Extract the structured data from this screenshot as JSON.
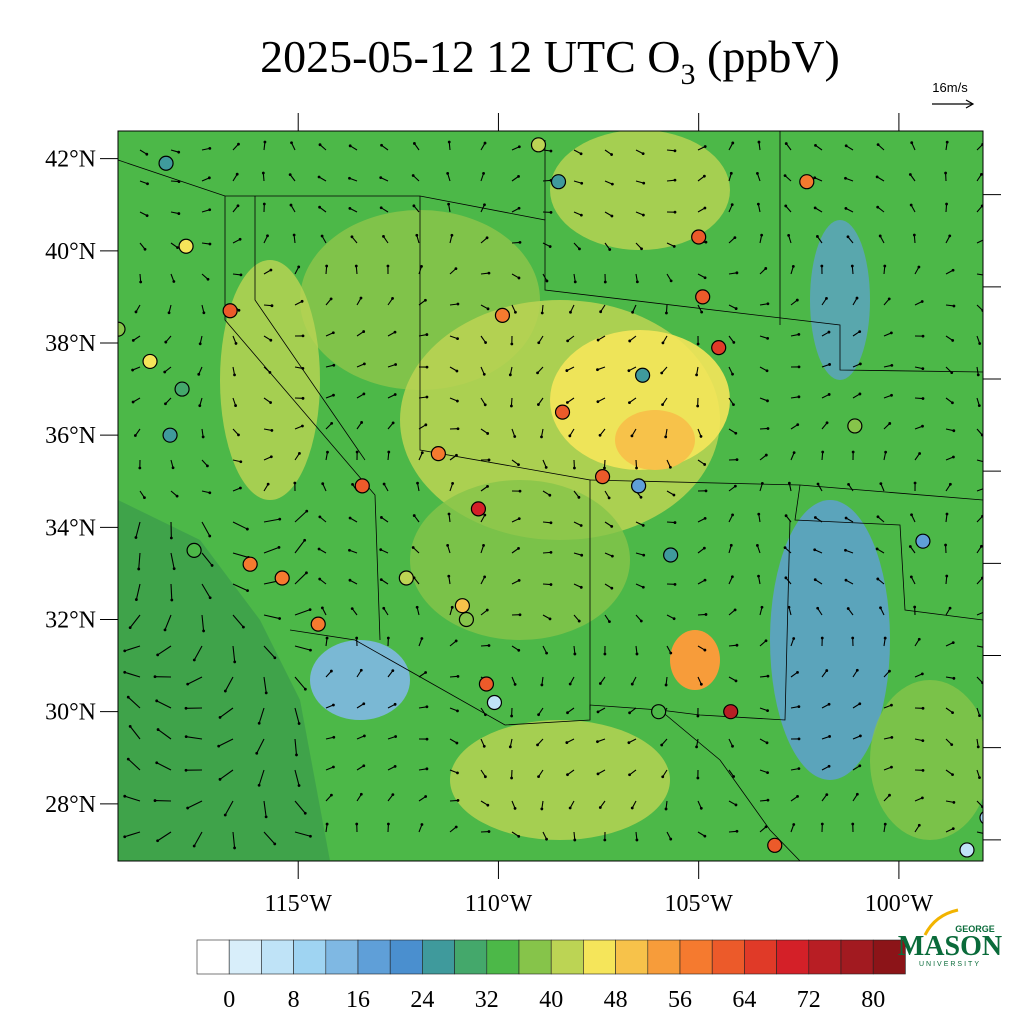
{
  "header": {
    "title": "2025-05-12 12 UTC O",
    "title_subscript": "3",
    "title_suffix": " (ppbV)",
    "wind_reference": "16m/s"
  },
  "map": {
    "lonlim": [
      -119.5,
      -97.9
    ],
    "latlim": [
      26.76,
      42.6
    ],
    "lonticks": [
      {
        "value": -115,
        "label": "115°W"
      },
      {
        "value": -110,
        "label": "110°W"
      },
      {
        "value": -105,
        "label": "105°W"
      },
      {
        "value": -100,
        "label": "100°W"
      }
    ],
    "latticks": [
      {
        "value": 42,
        "label": "42°N"
      },
      {
        "value": 40,
        "label": "40°N"
      },
      {
        "value": 38,
        "label": "38°N"
      },
      {
        "value": 36,
        "label": "36°N"
      },
      {
        "value": 34,
        "label": "34°N"
      },
      {
        "value": 32,
        "label": "32°N"
      },
      {
        "value": 30,
        "label": "30°N"
      },
      {
        "value": 28,
        "label": "28°N"
      }
    ],
    "stations": [
      {
        "lon": -116.7,
        "lat": 38.7,
        "value": 60
      },
      {
        "lon": -113.4,
        "lat": 34.9,
        "value": 60
      },
      {
        "lon": -110.5,
        "lat": 34.4,
        "value": 70
      },
      {
        "lon": -109.9,
        "lat": 38.6,
        "value": 58
      },
      {
        "lon": -104.5,
        "lat": 37.9,
        "value": 64
      },
      {
        "lon": -104.2,
        "lat": 30.0,
        "value": 72
      },
      {
        "lon": -103.1,
        "lat": 27.1,
        "value": 60
      },
      {
        "lon": -118.3,
        "lat": 41.9,
        "value": 24
      },
      {
        "lon": -117.8,
        "lat": 40.1,
        "value": 46
      },
      {
        "lon": -119.5,
        "lat": 38.3,
        "value": 38
      },
      {
        "lon": -118.7,
        "lat": 37.6,
        "value": 44
      },
      {
        "lon": -118.2,
        "lat": 36.0,
        "value": 24
      },
      {
        "lon": -117.6,
        "lat": 33.5,
        "value": 34
      },
      {
        "lon": -116.2,
        "lat": 33.2,
        "value": 58
      },
      {
        "lon": -115.4,
        "lat": 32.9,
        "value": 58
      },
      {
        "lon": -114.5,
        "lat": 31.9,
        "value": 56
      },
      {
        "lon": -111.5,
        "lat": 35.6,
        "value": 56
      },
      {
        "lon": -110.9,
        "lat": 32.3,
        "value": 48
      },
      {
        "lon": -110.3,
        "lat": 30.6,
        "value": 60
      },
      {
        "lon": -108.4,
        "lat": 36.5,
        "value": 62
      },
      {
        "lon": -107.4,
        "lat": 35.1,
        "value": 62
      },
      {
        "lon": -106.4,
        "lat": 37.3,
        "value": 24
      },
      {
        "lon": -106.5,
        "lat": 34.9,
        "value": 18
      },
      {
        "lon": -105.7,
        "lat": 33.4,
        "value": 24
      },
      {
        "lon": -105.0,
        "lat": 40.3,
        "value": 60
      },
      {
        "lon": -104.9,
        "lat": 39.0,
        "value": 62
      },
      {
        "lon": -102.3,
        "lat": 41.5,
        "value": 56
      },
      {
        "lon": -101.1,
        "lat": 36.2,
        "value": 36
      },
      {
        "lon": -99.4,
        "lat": 33.7,
        "value": 16
      },
      {
        "lon": -97.8,
        "lat": 27.7,
        "value": 8
      },
      {
        "lon": -98.3,
        "lat": 27.0,
        "value": 4
      },
      {
        "lon": -109.0,
        "lat": 42.3,
        "value": 40
      },
      {
        "lon": -108.5,
        "lat": 41.5,
        "value": 24
      },
      {
        "lon": -110.8,
        "lat": 32.0,
        "value": 36
      },
      {
        "lon": -110.1,
        "lat": 30.2,
        "value": 4
      },
      {
        "lon": -106.0,
        "lat": 30.0,
        "value": 32
      },
      {
        "lon": -112.3,
        "lat": 32.9,
        "value": 40
      },
      {
        "lon": -117.9,
        "lat": 37.0,
        "value": 30
      }
    ]
  },
  "colorbar": {
    "ticks": [
      0,
      8,
      16,
      24,
      32,
      40,
      48,
      56,
      64,
      72,
      80
    ],
    "step": 4,
    "colors": [
      "#ffffff",
      "#d8eefa",
      "#bfe3f7",
      "#9fd4f2",
      "#7fb8e3",
      "#5f9fd8",
      "#4a8fcf",
      "#3f9a9c",
      "#44a86b",
      "#4cb848",
      "#86c44a",
      "#bcd454",
      "#f5e55a",
      "#f7c24a",
      "#f79c3a",
      "#f57a2f",
      "#ec5a2a",
      "#e03a28",
      "#d42028",
      "#b81e24",
      "#a21a20",
      "#8c1418"
    ]
  },
  "logo": {
    "top": "GEORGE",
    "main": "MASON",
    "bottom": "UNIVERSITY"
  }
}
